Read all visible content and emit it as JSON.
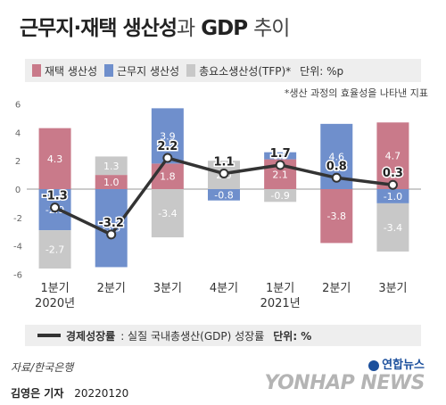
{
  "title": {
    "main": "근무지·재택 생산성",
    "connector": "과",
    "gdp": "GDP",
    "tail": "추이"
  },
  "legend": {
    "items": [
      {
        "label": "재택 생산성",
        "color": "#c97a8a"
      },
      {
        "label": "근무지 생산성",
        "color": "#6f8fcc"
      },
      {
        "label": "총요소생산성(TFP)*",
        "color": "#c8c8c8"
      }
    ],
    "unit": "단위: %p"
  },
  "note": "*생산 과정의 효율성을 나타낸 지표",
  "bottom_legend": {
    "name": "경제성장률",
    "desc": ": 실질 국내총생산(GDP) 성장률",
    "unit": "단위: %"
  },
  "source": "자료/한국은행",
  "byline": {
    "author": "김영은 기자",
    "date": "20220120"
  },
  "logo": {
    "top": "연합뉴스",
    "word": "YONHAP NEWS"
  },
  "chart_data": {
    "type": "bar",
    "categories": [
      "1분기\n2020년",
      "2분기",
      "3분기",
      "4분기",
      "1분기\n2021년",
      "2분기",
      "3분기"
    ],
    "ylim": [
      -6,
      6
    ],
    "yticks": [
      -6,
      -4,
      -2,
      0,
      2,
      4,
      6
    ],
    "series": [
      {
        "name": "재택 생산성",
        "color": "#c97a8a",
        "values": [
          4.3,
          1.0,
          1.8,
          null,
          2.1,
          -3.8,
          4.7
        ]
      },
      {
        "name": "근무지 생산성",
        "color": "#6f8fcc",
        "values": [
          -2.9,
          -5.5,
          3.9,
          -0.8,
          0.5,
          4.6,
          -1.0
        ]
      },
      {
        "name": "총요소생산성(TFP)*",
        "color": "#c8c8c8",
        "values": [
          -2.7,
          1.3,
          -3.4,
          2.0,
          -0.9,
          null,
          -3.4
        ]
      }
    ],
    "line": {
      "name": "경제성장률",
      "color": "#333333",
      "values": [
        -1.3,
        -3.2,
        2.2,
        1.1,
        1.7,
        0.8,
        0.3
      ]
    },
    "grid": false
  }
}
